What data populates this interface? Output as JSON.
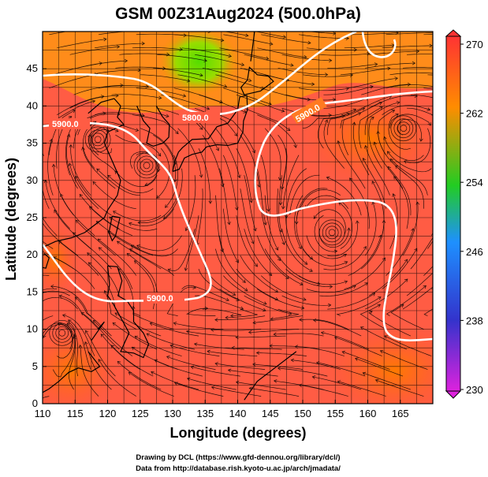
{
  "chart_data": {
    "type": "heatmap",
    "title": "GSM 00Z31Aug2024 (500.0hPa)",
    "xlabel": "Longitude (degrees)",
    "ylabel": "Latitude  (degrees)",
    "xlim": [
      110,
      170
    ],
    "ylim": [
      0,
      50
    ],
    "x_ticks": [
      "110",
      "115",
      "120",
      "125",
      "130",
      "135",
      "140",
      "145",
      "150",
      "155",
      "160",
      "165"
    ],
    "y_ticks": [
      "0",
      "5",
      "10",
      "15",
      "20",
      "25",
      "30",
      "35",
      "40",
      "45"
    ],
    "colorbar": {
      "min": 230,
      "max": 270,
      "ticks": [
        "270",
        "262",
        "254",
        "246",
        "238",
        "230"
      ],
      "colors": [
        "#dd22dd",
        "#3333cc",
        "#1e90ff",
        "#22cc22",
        "#ff8c00",
        "#ff3333"
      ]
    },
    "contours": [
      {
        "label": "5900.0"
      },
      {
        "label": "5800.0"
      },
      {
        "label": "5900.0"
      },
      {
        "label": "5900.0"
      }
    ],
    "vortex_centers": [
      {
        "lon": 118.5,
        "lat": 35.5
      },
      {
        "lon": 165.5,
        "lat": 37.0
      },
      {
        "lon": 154.5,
        "lat": 23.0
      },
      {
        "lon": 113.0,
        "lat": 9.5
      },
      {
        "lon": 126.0,
        "lat": 32.0
      }
    ],
    "grid": true
  },
  "credits": {
    "line1": "Drawing by DCL (https://www.gfd-dennou.org/library/dcl/)",
    "line2": "Data from http://database.rish.kyoto-u.ac.jp/arch/jmadata/"
  }
}
